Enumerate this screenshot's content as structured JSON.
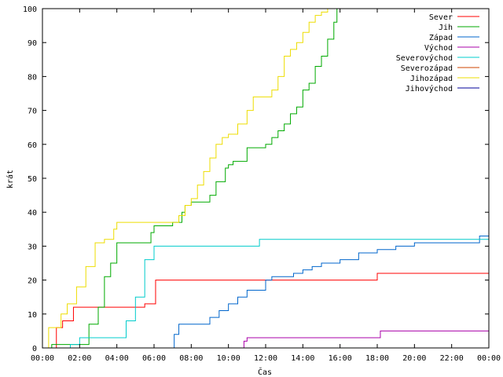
{
  "chart_data": {
    "type": "line",
    "title": "",
    "xlabel": "Čas",
    "ylabel": "krát",
    "xlim": [
      "00:00",
      "24:00"
    ],
    "ylim": [
      0,
      100
    ],
    "grid": false,
    "legend_position": "top-right",
    "x_ticks": [
      "00:00",
      "02:00",
      "04:00",
      "06:00",
      "08:00",
      "10:00",
      "12:00",
      "14:00",
      "16:00",
      "18:00",
      "20:00",
      "22:00",
      "00:00"
    ],
    "y_ticks": [
      "0",
      "10",
      "20",
      "30",
      "40",
      "50",
      "60",
      "70",
      "80",
      "90",
      "100"
    ],
    "series": [
      {
        "name": "Sever",
        "color": "#ff0000",
        "x": [
          "00:30",
          "00:45",
          "01:05",
          "01:30",
          "01:40",
          "03:30",
          "04:50",
          "05:30",
          "06:05",
          "07:00",
          "12:00",
          "15:00",
          "17:20",
          "18:00",
          "20:00",
          "22:00",
          "24:00"
        ],
        "y": [
          0,
          6,
          8,
          8,
          12,
          12,
          12,
          13,
          20,
          20,
          20,
          20,
          20,
          22,
          22,
          22,
          22
        ]
      },
      {
        "name": "Jih",
        "color": "#00aa00",
        "x": [
          "00:00",
          "00:30",
          "02:10",
          "02:30",
          "03:00",
          "03:20",
          "03:40",
          "04:00",
          "04:30",
          "05:50",
          "06:00",
          "06:10",
          "07:00",
          "07:30",
          "07:40",
          "08:00",
          "08:30",
          "09:00",
          "09:20",
          "09:50",
          "10:00",
          "10:15",
          "10:30",
          "11:00",
          "11:30",
          "12:00",
          "12:20",
          "12:40",
          "13:00",
          "13:20",
          "13:40",
          "14:00",
          "14:20",
          "14:40",
          "15:00",
          "15:20",
          "15:40",
          "15:50"
        ],
        "y": [
          0,
          1,
          1,
          7,
          12,
          21,
          25,
          31,
          31,
          34,
          36,
          36,
          37,
          40,
          42,
          43,
          43,
          45,
          49,
          53,
          54,
          55,
          55,
          59,
          59,
          60,
          62,
          64,
          66,
          69,
          71,
          76,
          78,
          83,
          86,
          91,
          96,
          100
        ]
      },
      {
        "name": "Západ",
        "color": "#0066cc",
        "x": [
          "06:55",
          "07:05",
          "07:20",
          "08:30",
          "09:00",
          "09:30",
          "10:00",
          "10:30",
          "11:00",
          "12:00",
          "12:20",
          "13:00",
          "13:30",
          "14:00",
          "14:30",
          "15:00",
          "15:30",
          "16:00",
          "17:00",
          "18:00",
          "19:00",
          "20:00",
          "21:00",
          "22:00",
          "23:00",
          "23:30",
          "24:00"
        ],
        "y": [
          0,
          4,
          7,
          7,
          9,
          11,
          13,
          15,
          17,
          20,
          21,
          21,
          22,
          23,
          24,
          25,
          25,
          26,
          28,
          29,
          30,
          31,
          31,
          31,
          31,
          33,
          34
        ]
      },
      {
        "name": "Východ",
        "color": "#aa00aa",
        "x": [
          "10:40",
          "10:50",
          "11:00",
          "12:00",
          "14:00",
          "16:00",
          "18:00",
          "18:10",
          "20:00",
          "22:00",
          "24:00"
        ],
        "y": [
          0,
          2,
          3,
          3,
          3,
          3,
          3,
          5,
          5,
          5,
          5
        ]
      },
      {
        "name": "Severovýchod",
        "color": "#00cccc",
        "x": [
          "00:00",
          "01:30",
          "02:00",
          "03:00",
          "04:20",
          "04:30",
          "05:00",
          "05:30",
          "06:00",
          "06:30",
          "08:00",
          "10:00",
          "11:30",
          "11:40",
          "14:00",
          "16:00",
          "18:00",
          "20:00",
          "22:00",
          "24:00"
        ],
        "y": [
          0,
          1,
          3,
          3,
          3,
          8,
          15,
          26,
          30,
          30,
          30,
          30,
          30,
          32,
          32,
          32,
          32,
          32,
          32,
          32
        ]
      },
      {
        "name": "Severozápad",
        "color": "#cc4400",
        "x": [],
        "y": []
      },
      {
        "name": "Jihozápad",
        "color": "#eedd00",
        "x": [
          "00:00",
          "00:20",
          "00:50",
          "01:00",
          "01:20",
          "01:50",
          "02:20",
          "02:50",
          "03:20",
          "03:50",
          "04:00",
          "05:00",
          "06:00",
          "07:00",
          "07:20",
          "07:40",
          "08:00",
          "08:20",
          "08:40",
          "09:00",
          "09:20",
          "09:40",
          "10:00",
          "10:30",
          "11:00",
          "11:20",
          "11:40",
          "12:00",
          "12:20",
          "12:40",
          "13:00",
          "13:20",
          "13:40",
          "14:00",
          "14:20",
          "14:40",
          "15:00",
          "15:20"
        ],
        "y": [
          0,
          6,
          6,
          10,
          13,
          18,
          24,
          31,
          32,
          35,
          37,
          37,
          37,
          37,
          39,
          42,
          44,
          48,
          52,
          56,
          60,
          62,
          63,
          66,
          70,
          74,
          74,
          74,
          76,
          80,
          86,
          88,
          90,
          93,
          96,
          98,
          99,
          100
        ]
      },
      {
        "name": "Jihovýchod",
        "color": "#000099",
        "x": [],
        "y": []
      }
    ]
  }
}
